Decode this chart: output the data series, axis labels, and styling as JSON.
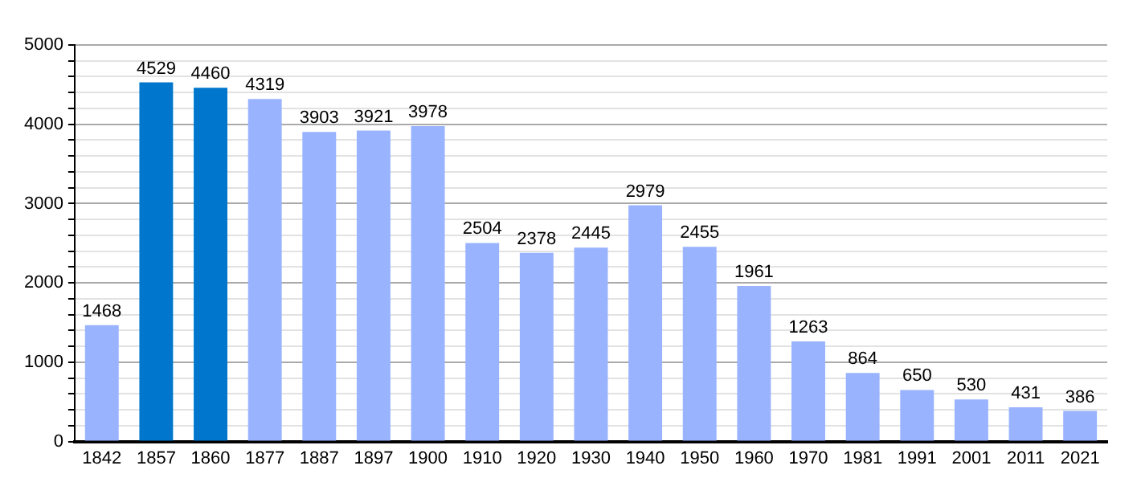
{
  "chart_data": {
    "type": "bar",
    "categories": [
      "1842",
      "1857",
      "1860",
      "1877",
      "1887",
      "1897",
      "1900",
      "1910",
      "1920",
      "1930",
      "1940",
      "1950",
      "1960",
      "1970",
      "1981",
      "1991",
      "2001",
      "2011",
      "2021"
    ],
    "values": [
      1468,
      4529,
      4460,
      4319,
      3903,
      3921,
      3978,
      2504,
      2378,
      2445,
      2979,
      2455,
      1961,
      1263,
      864,
      650,
      530,
      431,
      386
    ],
    "colors": [
      "#99b3ff",
      "#0077cc",
      "#0077cc",
      "#99b3ff",
      "#99b3ff",
      "#99b3ff",
      "#99b3ff",
      "#99b3ff",
      "#99b3ff",
      "#99b3ff",
      "#99b3ff",
      "#99b3ff",
      "#99b3ff",
      "#99b3ff",
      "#99b3ff",
      "#99b3ff",
      "#99b3ff",
      "#99b3ff",
      "#99b3ff"
    ],
    "ylim": [
      0,
      5000
    ],
    "yticks": [
      0,
      {
        "value": 200,
        "label": null
      },
      {
        "value": 400,
        "label": null
      },
      {
        "value": 600,
        "label": null
      },
      {
        "value": 800,
        "label": null
      },
      1000,
      {
        "value": 1200,
        "label": null
      },
      {
        "value": 1400,
        "label": null
      },
      {
        "value": 1600,
        "label": null
      },
      {
        "value": 1800,
        "label": null
      },
      2000,
      {
        "value": 2200,
        "label": null
      },
      {
        "value": 2400,
        "label": null
      },
      {
        "value": 2600,
        "label": null
      },
      {
        "value": 2800,
        "label": null
      },
      3000,
      {
        "value": 3200,
        "label": null
      },
      {
        "value": 3400,
        "label": null
      },
      {
        "value": 3600,
        "label": null
      },
      {
        "value": 3800,
        "label": null
      },
      4000,
      {
        "value": 4200,
        "label": null
      },
      {
        "value": 4400,
        "label": null
      },
      {
        "value": 4600,
        "label": null
      },
      {
        "value": 4800,
        "label": null
      },
      5000
    ],
    "grid": "y",
    "data_labels": true
  }
}
